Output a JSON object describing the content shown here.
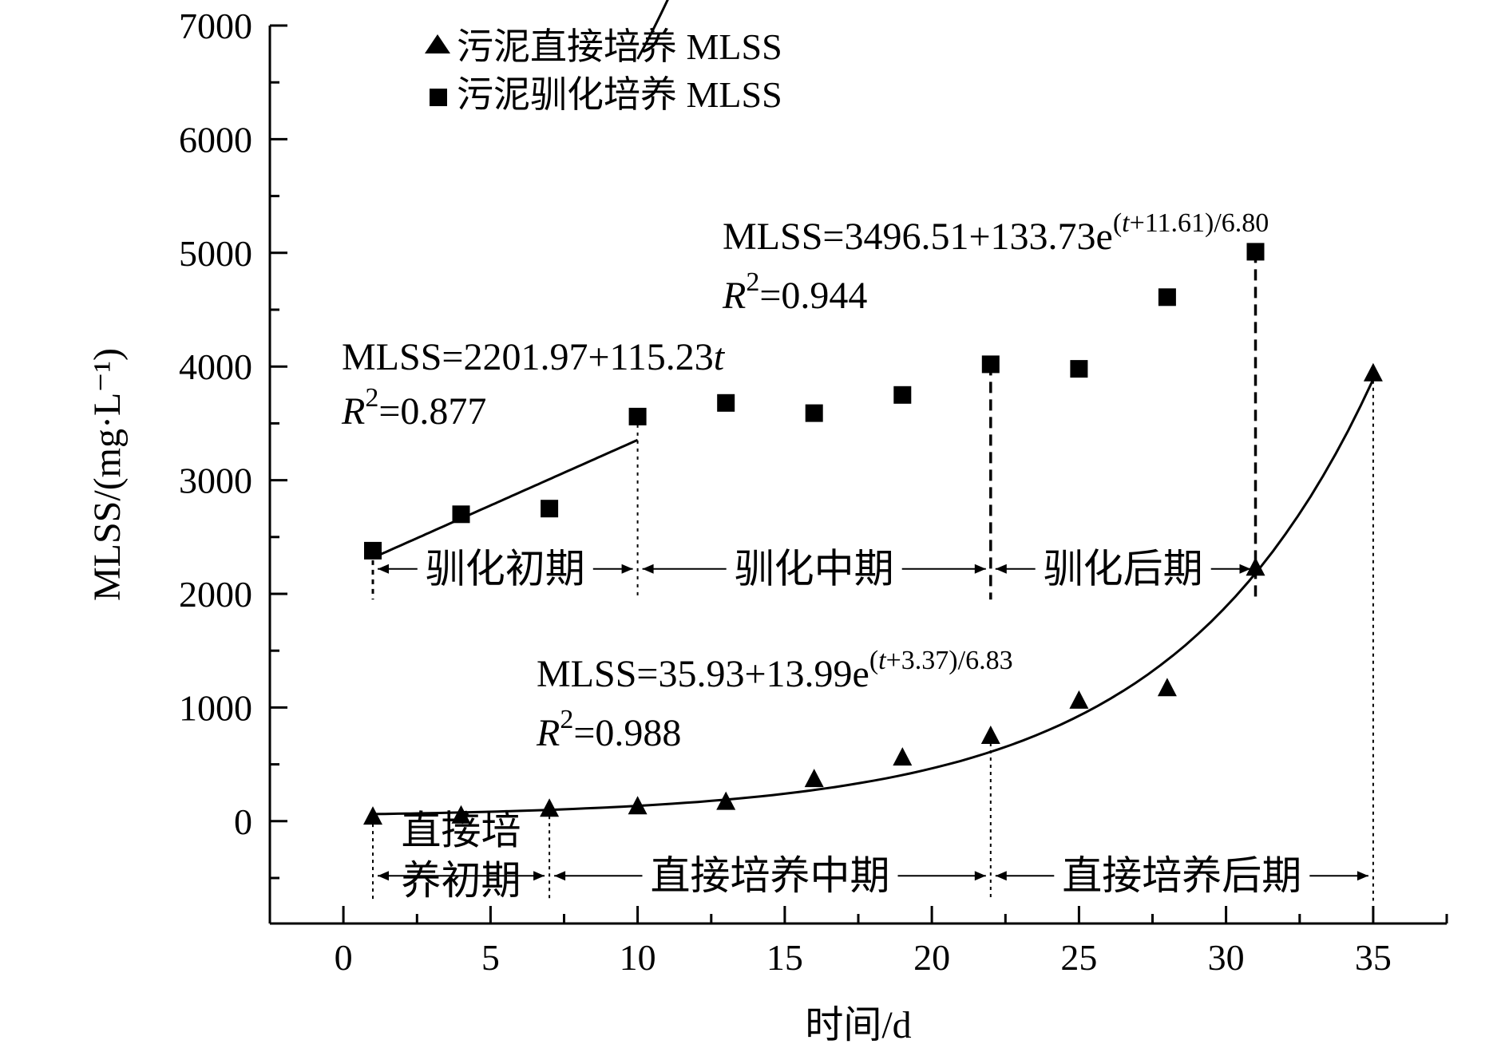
{
  "chart_data": {
    "type": "scatter",
    "title": "",
    "xlabel": "时间/d",
    "ylabel": "MLSS/(mg·L⁻¹)",
    "xlim": [
      -2.5,
      37.5
    ],
    "ylim": [
      -900,
      7000
    ],
    "x_ticks": [
      0,
      5,
      10,
      15,
      20,
      25,
      30,
      35
    ],
    "y_ticks": [
      0,
      1000,
      2000,
      3000,
      4000,
      5000,
      6000,
      7000
    ],
    "legend": {
      "position": "top-left"
    },
    "series": [
      {
        "name": "污泥直接培养 MLSS",
        "marker": "triangle",
        "x": [
          1,
          4,
          7,
          10,
          13,
          16,
          19,
          22,
          25,
          28,
          31,
          35
        ],
        "y": [
          40,
          50,
          110,
          130,
          170,
          370,
          560,
          750,
          1060,
          1170,
          2230,
          3940
        ]
      },
      {
        "name": "污泥驯化培养 MLSS",
        "marker": "square",
        "x": [
          1,
          4,
          7,
          10,
          13,
          16,
          19,
          22,
          25,
          28,
          31
        ],
        "y": [
          2380,
          2700,
          2750,
          3560,
          3680,
          3590,
          3750,
          4020,
          3980,
          4610,
          5010
        ]
      }
    ],
    "fits": [
      {
        "kind": "linear",
        "a": 2201.97,
        "b": 115.23,
        "range": [
          1,
          10
        ],
        "equation": {
          "lhs": "MLSS=2201.97+115.23",
          "var": "t"
        },
        "r2_label": "=0.877"
      },
      {
        "kind": "exp",
        "a": 3496.51,
        "b": 133.73,
        "c": 11.61,
        "d": 6.8,
        "range": [
          10,
          31
        ],
        "equation": {
          "lhs": "MLSS=3496.51+133.73e",
          "sup_open": "(",
          "sup_var": "t",
          "sup_rest": "+11.61)/6.80"
        },
        "r2_label": "=0.944"
      },
      {
        "kind": "exp",
        "a": 35.93,
        "b": 13.99,
        "c": 3.37,
        "d": 6.83,
        "range": [
          1,
          35
        ],
        "equation": {
          "lhs": "MLSS=35.93+13.99e",
          "sup_open": "(",
          "sup_var": "t",
          "sup_rest": "+3.37)/6.83"
        },
        "r2_label": "=0.988"
      }
    ],
    "r_letter": "R",
    "r_exp": "2",
    "phases_acclimation": [
      "驯化初期",
      "驯化中期",
      "驯化后期"
    ],
    "phases_direct": [
      "直接培",
      "养初期",
      "直接培养中期",
      "直接培养后期"
    ]
  }
}
